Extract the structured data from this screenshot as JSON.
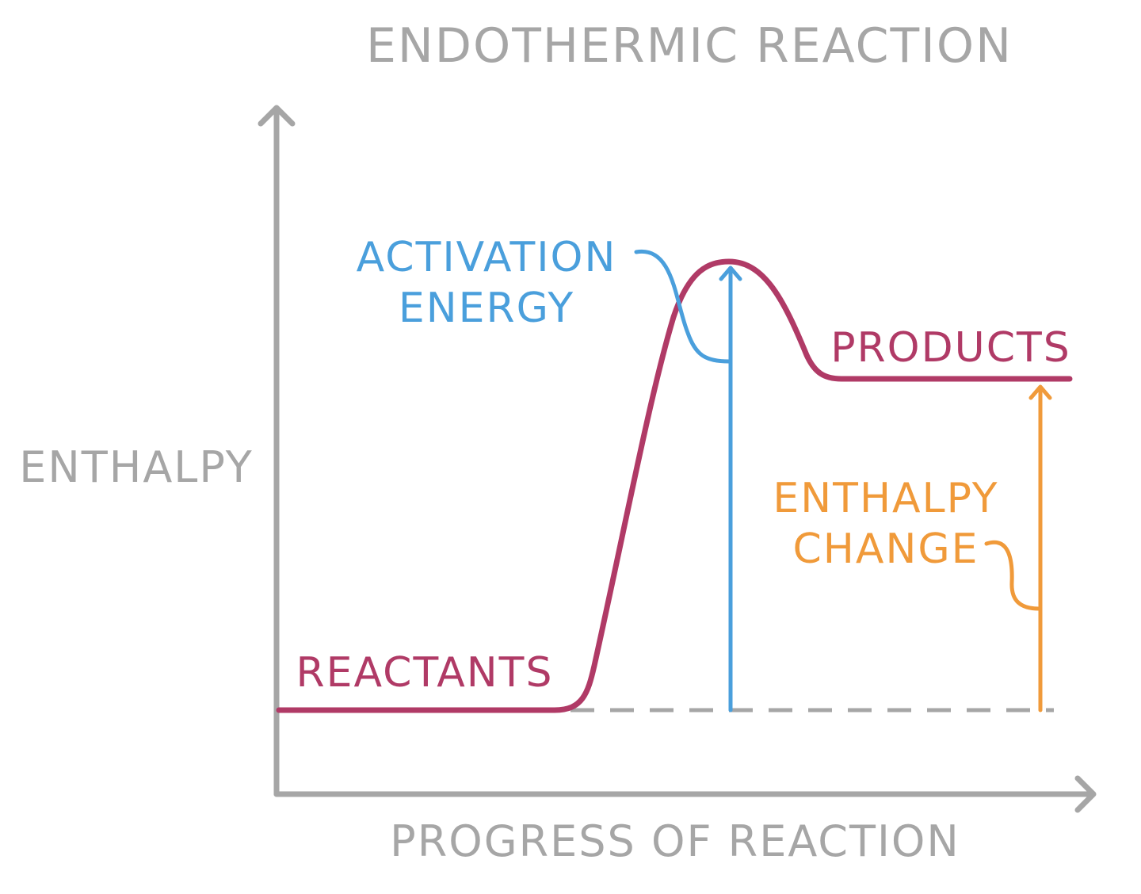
{
  "title": "ENDOTHERMIC REACTION",
  "axes": {
    "y_label": "ENTHALPY",
    "x_label": "PROGRESS OF REACTION"
  },
  "labels": {
    "reactants": "REACTANTS",
    "products": "PRODUCTS",
    "activation_energy": [
      "ACTIVATION",
      "ENERGY"
    ],
    "enthalpy_change": [
      "ENTHALPY",
      "CHANGE"
    ]
  },
  "colors": {
    "axis": "#a6a6a6",
    "curve": "#b03a66",
    "activation": "#4a9fdc",
    "enthalpy_change": "#f09a3a",
    "baseline_dash": "#a6a6a6"
  }
}
